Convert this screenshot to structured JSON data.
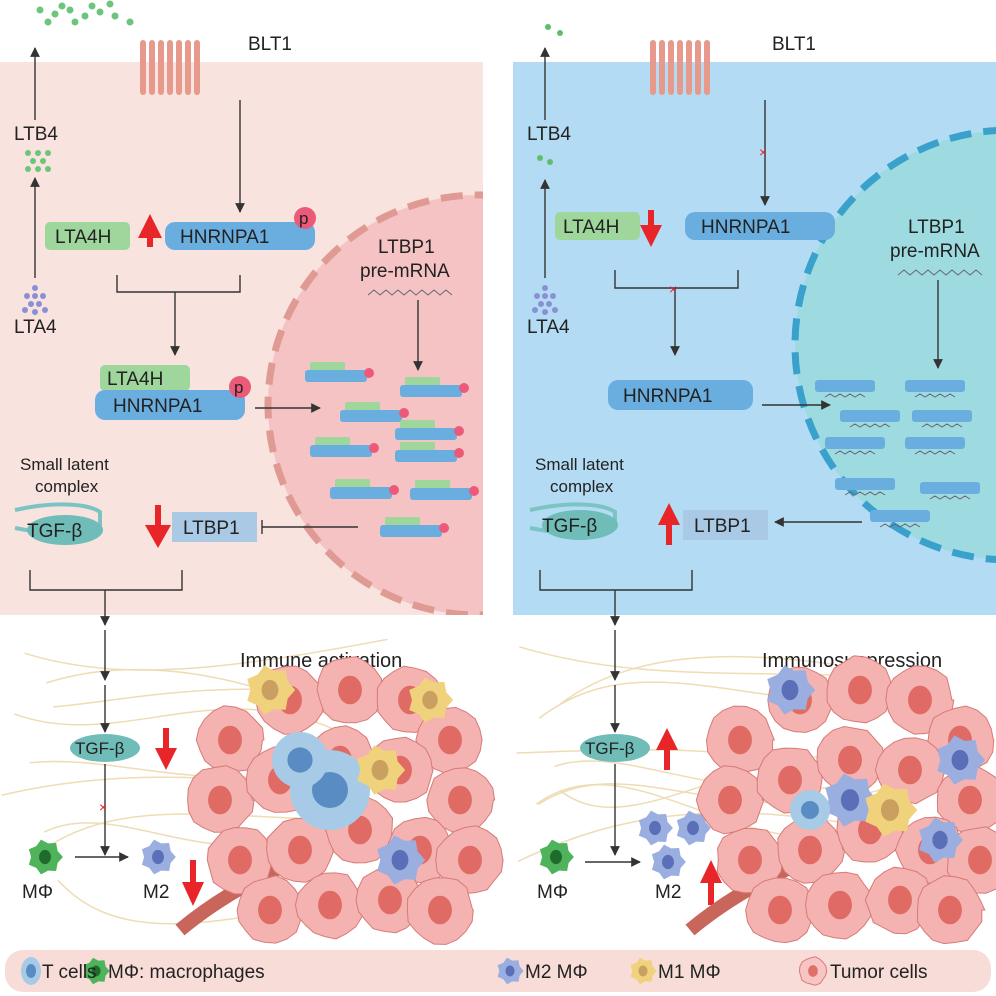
{
  "colors": {
    "left_panel": "#f8e3df",
    "right_panel": "#b3dcf4",
    "left_nucleus": "#f5c3c3",
    "right_nucleus": "#9edbe0",
    "lta4h": "#9ed69c",
    "hnrnpa1": "#6aaee0",
    "phospho": "#ec5a7a",
    "ltbp1": "#a9c9e4",
    "red_arrow": "#e8262a",
    "tumor": "#f4b3b0",
    "t_cell": "#a7cbe6",
    "macrophage": "#4fb35b",
    "m2": "#9aaee0",
    "m1": "#f0d27c",
    "legend_bg": "#f8dcd8"
  },
  "left": {
    "receptor": "BLT1",
    "ltb4": "LTB4",
    "lta4": "LTA4",
    "lta4h": "LTA4H",
    "hnrnpa1": "HNRNPA1",
    "phospho": "p",
    "premrna_line1": "LTBP1",
    "premrna_line2": "pre-mRNA",
    "complex_lta4h": "LTA4H",
    "complex_hnrnpa1": "HNRNPA1",
    "complex_phospho": "p",
    "slc_line1": "Small latent",
    "slc_line2": "complex",
    "tgfb": "TGF-β",
    "ltbp1": "LTBP1",
    "ltbp1_trend": "down",
    "lta4h_trend": "up",
    "title": "Immune activation",
    "tgfb_bottom": "TGF-β",
    "tgfb_trend": "down",
    "macrophage": "MΦ",
    "m2": "M2",
    "m2_trend": "down"
  },
  "right": {
    "receptor": "BLT1",
    "ltb4": "LTB4",
    "lta4": "LTA4",
    "lta4h": "LTA4H",
    "hnrnpa1": "HNRNPA1",
    "premrna_line1": "LTBP1",
    "premrna_line2": "pre-mRNA",
    "complex_hnrnpa1": "HNRNPA1",
    "slc_line1": "Small latent",
    "slc_line2": "complex",
    "tgfb": "TGF-β",
    "ltbp1": "LTBP1",
    "ltbp1_trend": "up",
    "lta4h_trend": "down",
    "title": "Immunosuppression",
    "tgfb_bottom": "TGF-β",
    "tgfb_trend": "up",
    "macrophage": "MΦ",
    "m2": "M2",
    "m2_trend": "up"
  },
  "legend": {
    "items": [
      {
        "label": "T cells",
        "icon": "t-cell"
      },
      {
        "label": "MΦ: macrophages",
        "icon": "macrophage"
      },
      {
        "label": "M2 MΦ",
        "icon": "m2-macrophage"
      },
      {
        "label": "M1 MΦ",
        "icon": "m1-macrophage"
      },
      {
        "label": "Tumor cells",
        "icon": "tumor-cell"
      }
    ]
  }
}
